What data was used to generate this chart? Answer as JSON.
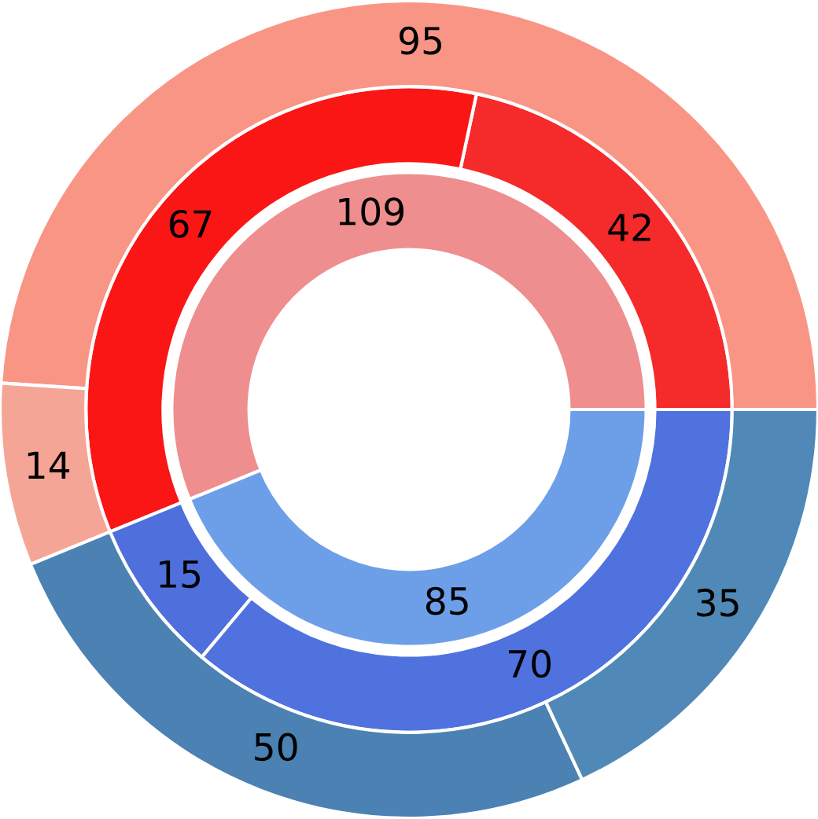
{
  "chart_data": {
    "type": "donut",
    "data_labels": true,
    "series": [
      {
        "values": [
          109,
          85
        ],
        "colors": [
          "#ef8e8e",
          "#6d9fe8"
        ]
      },
      {
        "values": [
          42,
          67,
          15,
          70
        ],
        "colors": [
          "#f52a2a",
          "#fb1616",
          "#4f6fdc",
          "#4f72df"
        ]
      },
      {
        "values": [
          95,
          14,
          50,
          35
        ],
        "colors": [
          "#f99585",
          "#f4a596",
          "#4b81b3",
          "#5089b7"
        ]
      }
    ]
  }
}
